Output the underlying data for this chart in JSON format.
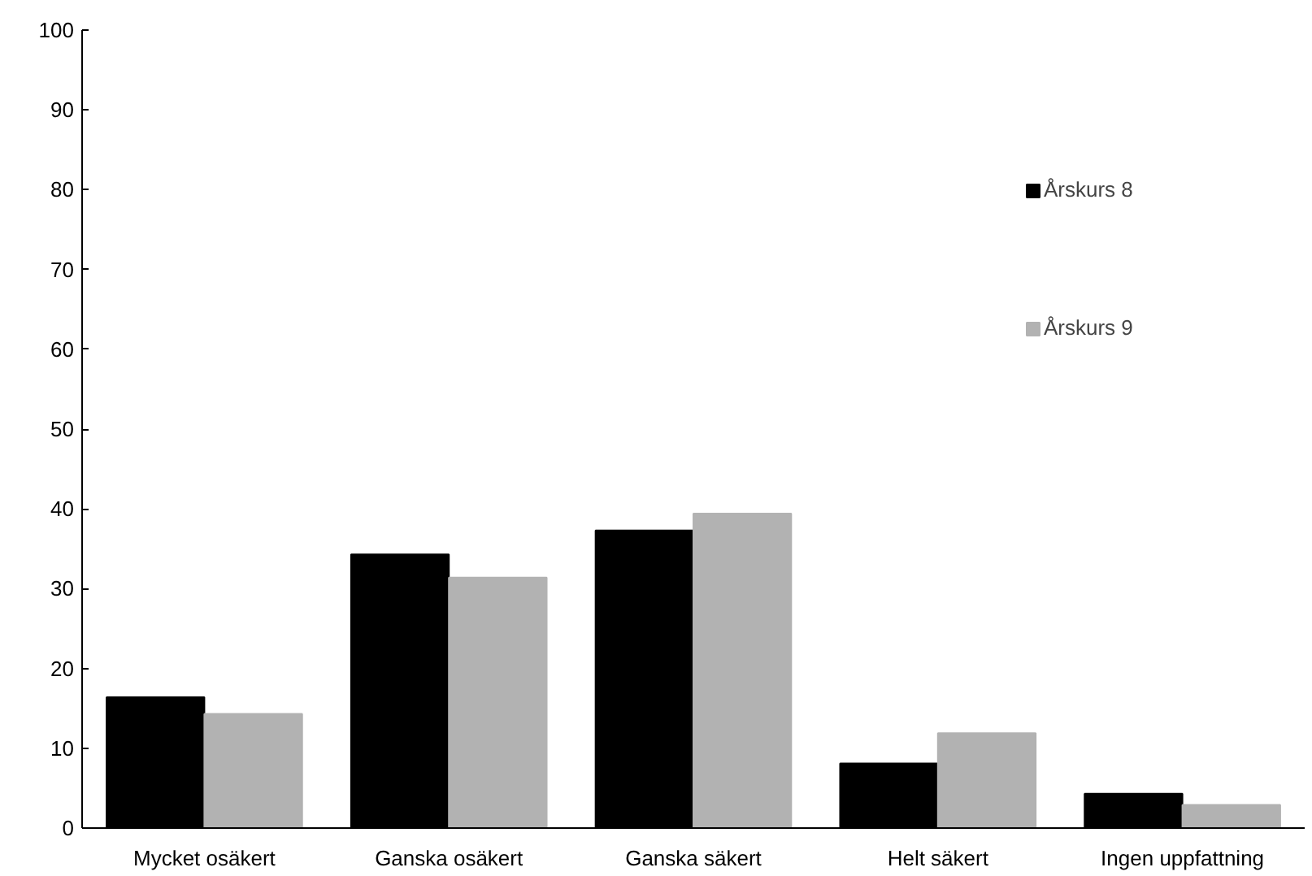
{
  "chart_data": {
    "type": "bar",
    "categories": [
      "Mycket osäkert",
      "Ganska osäkert",
      "Ganska säkert",
      "Helt säkert",
      "Ingen uppfattning"
    ],
    "series": [
      {
        "name": "Årskurs 8",
        "color": "#000000",
        "values": [
          16.4,
          34.3,
          37.3,
          8.1,
          4.3
        ]
      },
      {
        "name": "Årskurs 9",
        "color": "#b2b2b2",
        "values": [
          14.3,
          31.4,
          39.4,
          11.9,
          2.9
        ]
      }
    ],
    "ylim": [
      0,
      100
    ],
    "yticks": [
      0,
      10,
      20,
      30,
      40,
      50,
      60,
      70,
      80,
      90,
      100
    ],
    "grid": false,
    "legend": "top right"
  }
}
